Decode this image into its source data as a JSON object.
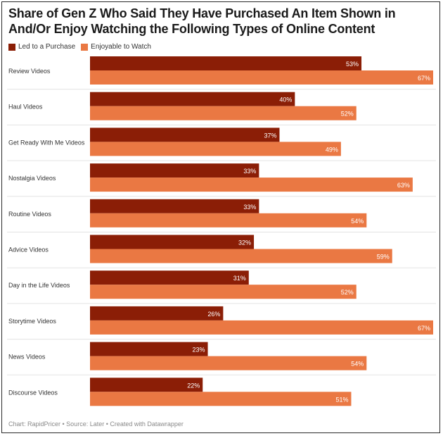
{
  "chart_data": {
    "type": "bar",
    "orientation": "horizontal",
    "title": "Share of Gen Z Who Said They Have Purchased An Item Shown in And/Or Enjoy Watching the Following Types of Online Content",
    "categories": [
      "Review Videos",
      "Haul Videos",
      "Get Ready With Me Videos",
      "Nostalgia Videos",
      "Routine Videos",
      "Advice Videos",
      "Day in the Life Videos",
      "Storytime Videos",
      "News Videos",
      "Discourse Videos"
    ],
    "series": [
      {
        "name": "Led to a Purchase",
        "color": "#8b1e06",
        "values": [
          53,
          40,
          37,
          33,
          33,
          32,
          31,
          26,
          23,
          22
        ]
      },
      {
        "name": "Enjoyable to Watch",
        "color": "#ea7843",
        "values": [
          67,
          52,
          49,
          63,
          54,
          59,
          52,
          67,
          54,
          51
        ]
      }
    ],
    "value_suffix": "%",
    "xlim": [
      0,
      67
    ],
    "legend": "top-left",
    "grid": false
  },
  "footer": "Chart: RapidPricer • Source: Later • Created with Datawrapper"
}
